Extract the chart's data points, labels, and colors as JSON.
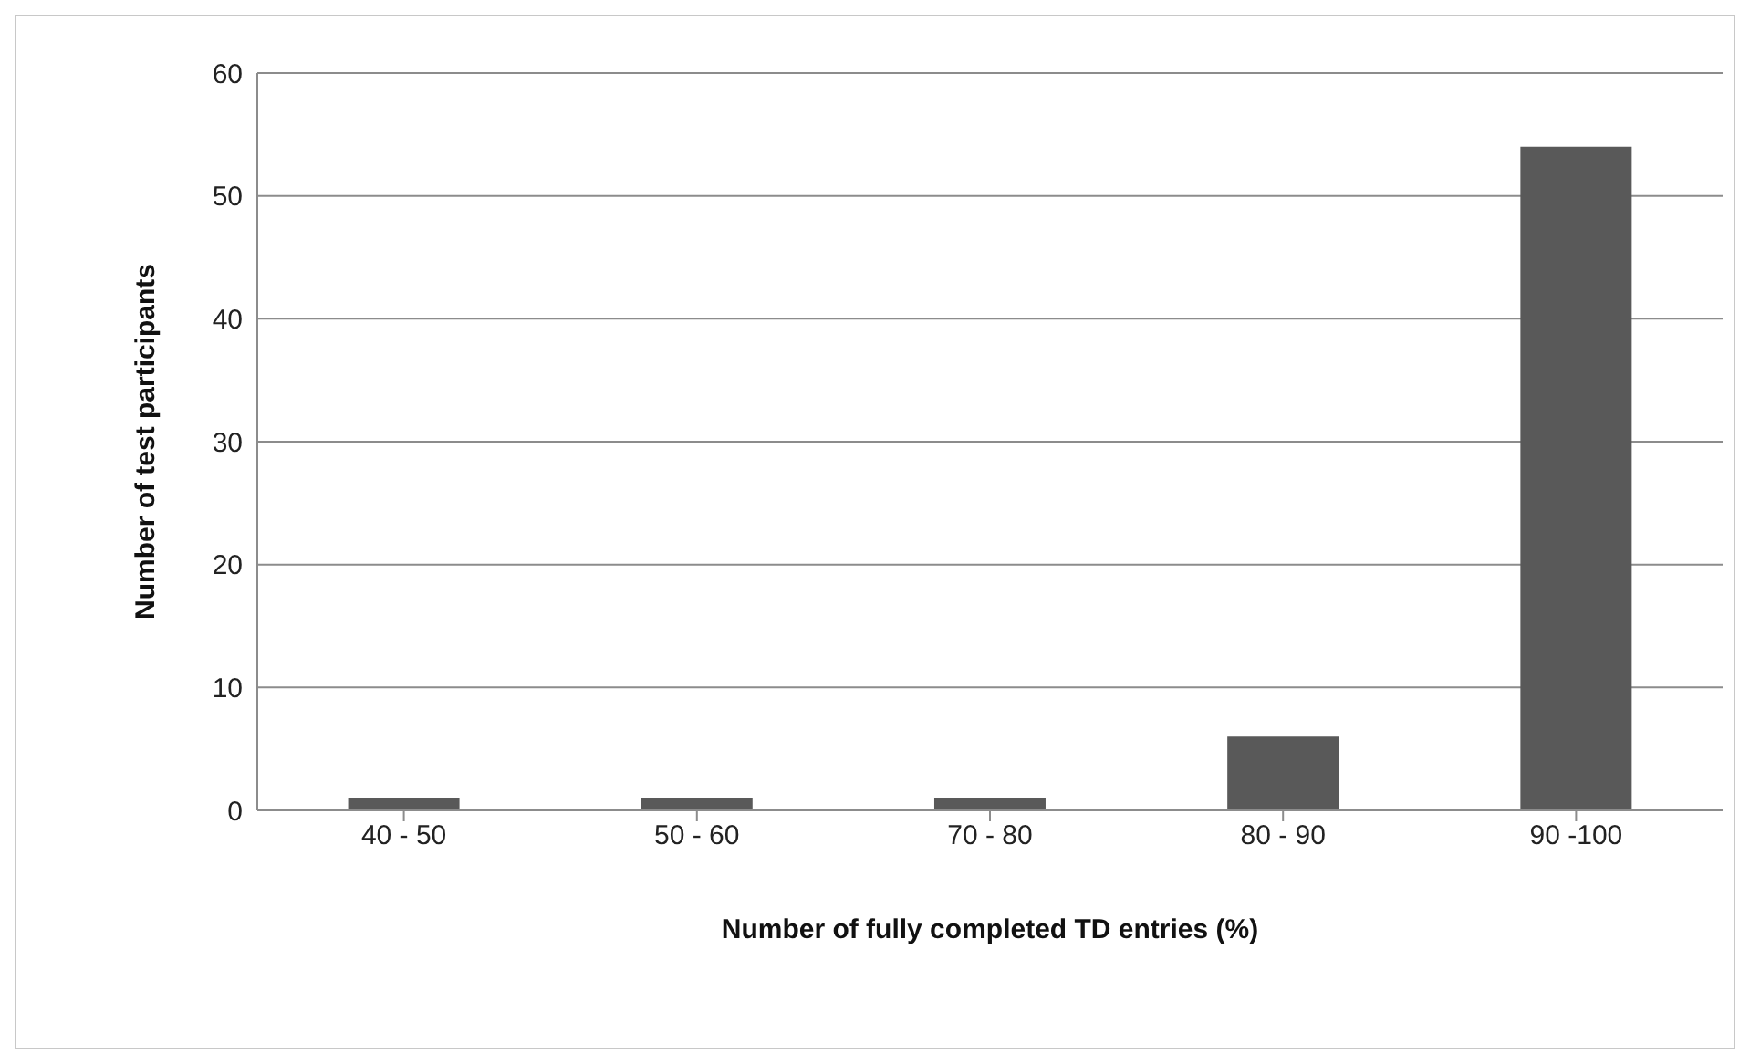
{
  "chart_data": {
    "type": "bar",
    "xlabel": "Number of fully completed TD entries (%)",
    "ylabel": "Number of test participants",
    "categories": [
      "40 - 50",
      "50 - 60",
      "70 - 80",
      "80 - 90",
      "90 -100"
    ],
    "values": [
      1,
      1,
      1,
      6,
      54
    ],
    "color": "#595959",
    "ylim": [
      0,
      60
    ],
    "yticks": [
      0,
      10,
      20,
      30,
      40,
      50,
      60
    ],
    "grid": "y"
  }
}
